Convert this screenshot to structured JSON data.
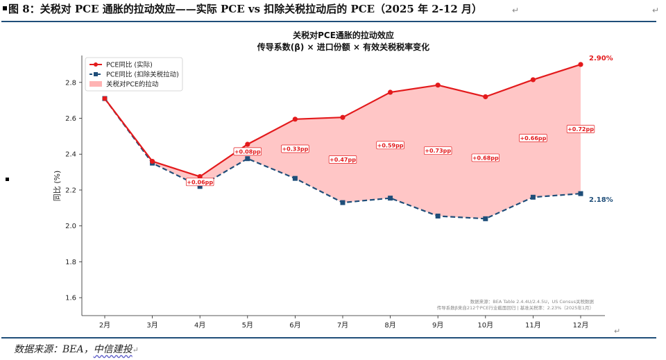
{
  "header": {
    "figure_title": "图 8：关税对 PCE 通胀的拉动效应——实际 PCE vs 扣除关税拉动后的 PCE（2025 年 2-12 月）"
  },
  "footer": {
    "source_prefix": "数据来源：BEA，",
    "source_org": "中信建投"
  },
  "colors": {
    "actual": "#e31a1c",
    "ex_tariff": "#1f4e79",
    "fill": "#ffb3b3",
    "rule": "#1f4e79"
  },
  "chart_data": {
    "type": "line",
    "title": "关税对PCE通胀的拉动效应",
    "subtitle": "传导系数(β) × 进口份额 × 有效关税税率变化",
    "xlabel": "",
    "ylabel": "同比 (%)",
    "ylim": [
      1.5,
      2.95
    ],
    "yticks": [
      1.6,
      1.8,
      2.0,
      2.2,
      2.4,
      2.6,
      2.8
    ],
    "ytick_labels": [
      "1.6",
      "1.8",
      "2.0",
      "2.2",
      "2.4",
      "2.6",
      "2.8"
    ],
    "categories": [
      "2月",
      "3月",
      "4月",
      "5月",
      "6月",
      "7月",
      "8月",
      "9月",
      "10月",
      "11月",
      "12月"
    ],
    "series": [
      {
        "name": "PCE同比 (实际)",
        "values": [
          2.71,
          2.36,
          2.275,
          2.455,
          2.595,
          2.605,
          2.745,
          2.785,
          2.72,
          2.815,
          2.9
        ]
      },
      {
        "name": "PCE同比 (扣除关税拉动)",
        "values": [
          2.71,
          2.35,
          2.22,
          2.375,
          2.265,
          2.13,
          2.155,
          2.055,
          2.04,
          2.16,
          2.18
        ]
      }
    ],
    "fill_legend": "关税对PCE的拉动",
    "legend_position": "top-left",
    "annotations": [
      {
        "x": "4月",
        "label": "+0.06pp",
        "value": 2.245
      },
      {
        "x": "5月",
        "label": "+0.08pp",
        "value": 2.415
      },
      {
        "x": "6月",
        "label": "+0.33pp",
        "value": 2.43
      },
      {
        "x": "7月",
        "label": "+0.47pp",
        "value": 2.37
      },
      {
        "x": "8月",
        "label": "+0.59pp",
        "value": 2.45
      },
      {
        "x": "9月",
        "label": "+0.73pp",
        "value": 2.42
      },
      {
        "x": "10月",
        "label": "+0.68pp",
        "value": 2.38
      },
      {
        "x": "11月",
        "label": "+0.66pp",
        "value": 2.49
      },
      {
        "x": "12月",
        "label": "+0.72pp",
        "value": 2.54
      }
    ],
    "end_labels": {
      "actual": "2.90%",
      "ex_tariff": "2.18%"
    },
    "notes": [
      "数据来源：BEA Table 2.4.4U/2.4.5U，US Census关税数据",
      "传导系数β来自212个PCE行业截面回归 | 基准关税率：2.23%（2025年1月）"
    ]
  }
}
